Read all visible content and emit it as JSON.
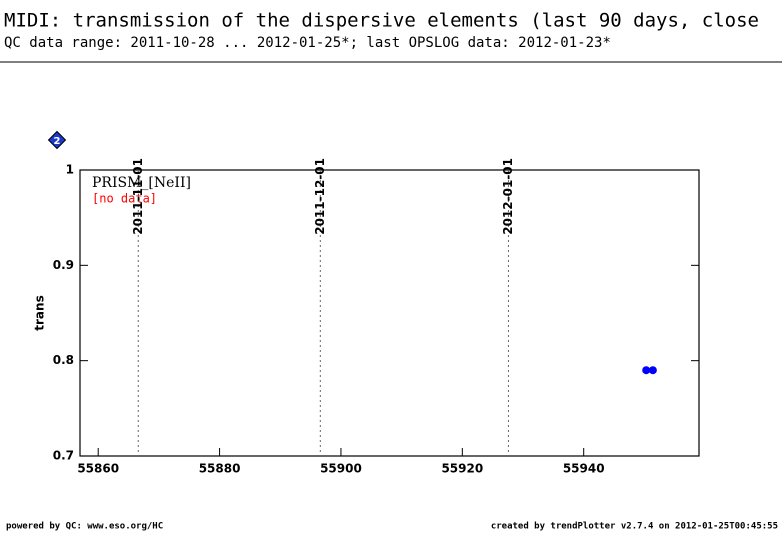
{
  "chart_data": {
    "type": "scatter",
    "title": "MIDI: transmission of the dispersive elements (last 90 days, close",
    "subtitle": "QC data range: 2011-10-28 ... 2012-01-25*; last OPSLOG data: 2012-01-23*",
    "ylabel": "trans",
    "annotations": {
      "panel": "PRISM_[NeII]",
      "status": "[no data]"
    },
    "series": [
      {
        "color": "#0000ff",
        "x": [
          55950.3,
          55951.4
        ],
        "values": [
          0.79,
          0.79
        ]
      }
    ],
    "xlim": [
      55857,
      55959
    ],
    "ylim": [
      0.7,
      1
    ],
    "xticks": [
      55860,
      55880,
      55900,
      55920,
      55940
    ],
    "yticks": [
      0.7,
      0.8,
      0.9,
      1
    ],
    "date_markers": [
      {
        "value": 55866.6,
        "label": "2011-11-01"
      },
      {
        "value": 55896.6,
        "label": "2011-12-01"
      },
      {
        "value": 55927.6,
        "label": "2012-01-01"
      }
    ]
  },
  "badge": "2",
  "footer": {
    "left": "powered by QC: www.eso.org/HC",
    "right": "created by trendPlotter v2.7.4 on 2012-01-25T00:45:55"
  }
}
